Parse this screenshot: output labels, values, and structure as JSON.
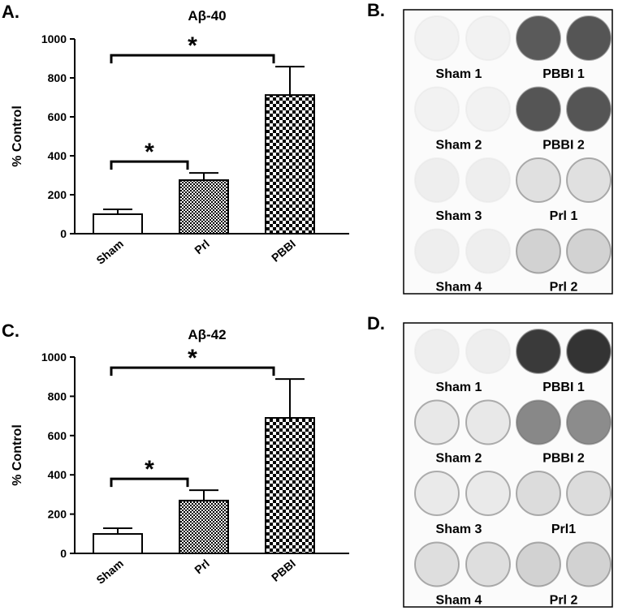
{
  "chart_data": [
    {
      "type": "bar",
      "panel": "A.",
      "title": "Aβ-40",
      "y_label": "% Control",
      "categories": [
        "Sham",
        "Prl",
        "PBBI"
      ],
      "values": [
        100,
        275,
        712
      ],
      "errors": [
        25,
        37,
        146
      ],
      "ylim": [
        0,
        1000
      ],
      "yticks": [
        0,
        200,
        400,
        600,
        800,
        1000
      ],
      "annotations": [
        "*",
        "*"
      ]
    },
    {
      "type": "bar",
      "panel": "C.",
      "title": "Aβ-42",
      "y_label": "% Control",
      "categories": [
        "Sham",
        "Prl",
        "PBBI"
      ],
      "values": [
        99,
        269,
        690
      ],
      "errors": [
        29,
        53,
        198
      ],
      "ylim": [
        0,
        1000
      ],
      "yticks": [
        0,
        200,
        400,
        600,
        800,
        1000
      ],
      "annotations": [
        "*",
        "*"
      ]
    }
  ],
  "blots": [
    {
      "panel": "B.",
      "labels": [
        [
          "Sham 1",
          "PBBI 1"
        ],
        [
          "Sham 2",
          "PBBI 2"
        ],
        [
          "Sham 3",
          "Prl 1"
        ],
        [
          "Sham 4",
          "Prl 2"
        ]
      ]
    },
    {
      "panel": "D.",
      "labels": [
        [
          "Sham 1",
          "PBBI 1"
        ],
        [
          "Sham 2",
          "PBBI 2"
        ],
        [
          "Sham 3",
          "Prl1"
        ],
        [
          "Sham 4",
          "Prl 2"
        ]
      ]
    }
  ]
}
